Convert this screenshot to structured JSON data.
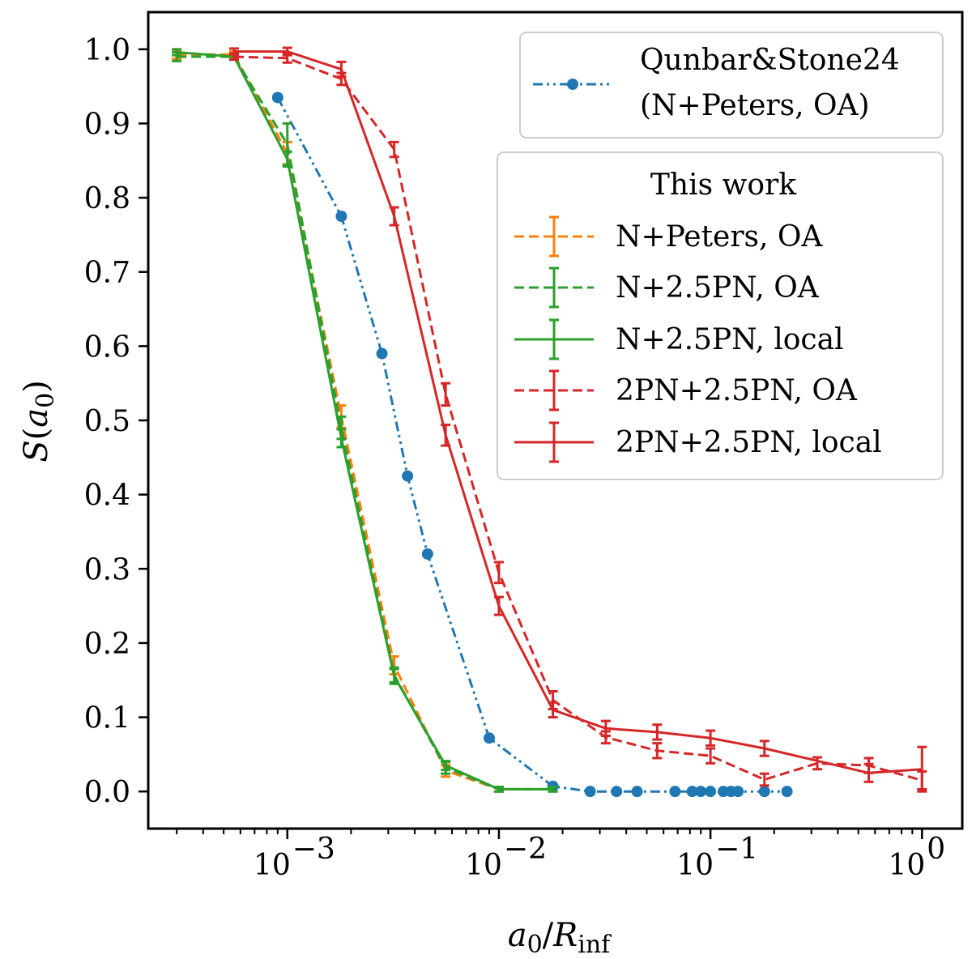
{
  "chart_data": {
    "type": "line",
    "title": "",
    "xlabel": "a0/Rinf",
    "ylabel": "S(a0)",
    "xscale": "log",
    "xlim": [
      0.00022,
      1.55
    ],
    "ylim": [
      -0.05,
      1.05
    ],
    "x_ticks": [
      {
        "value": 0.001,
        "base": "10",
        "exp": "−3"
      },
      {
        "value": 0.01,
        "base": "10",
        "exp": "−2"
      },
      {
        "value": 0.1,
        "base": "10",
        "exp": "−1"
      },
      {
        "value": 1,
        "base": "10",
        "exp": "0"
      }
    ],
    "y_ticks": [
      "0.0",
      "0.1",
      "0.2",
      "0.3",
      "0.4",
      "0.5",
      "0.6",
      "0.7",
      "0.8",
      "0.9",
      "1.0"
    ],
    "legend_placement": "top-right",
    "legend_groups": [
      {
        "title": "",
        "entries": [
          {
            "label_lines": [
              "Qunbar&Stone24",
              "(N+Peters, OA)"
            ],
            "series": 0
          }
        ]
      },
      {
        "title": "This work",
        "entries": [
          {
            "label_lines": [
              "N+Peters, OA"
            ],
            "series": 1
          },
          {
            "label_lines": [
              "N+2.5PN, OA"
            ],
            "series": 2
          },
          {
            "label_lines": [
              "N+2.5PN, local"
            ],
            "series": 3
          },
          {
            "label_lines": [
              "2PN+2.5PN, OA"
            ],
            "series": 4
          },
          {
            "label_lines": [
              "2PN+2.5PN, local"
            ],
            "series": 5
          }
        ]
      }
    ],
    "series": [
      {
        "name": "Qunbar&Stone24 (N+Peters, OA)",
        "color": "#1f77b4",
        "style": "dashdotdot",
        "marker": "circle",
        "errorbars": false,
        "x": [
          0.0009,
          0.0018,
          0.0028,
          0.0037,
          0.0046,
          0.009,
          0.018,
          0.027,
          0.036,
          0.045,
          0.068,
          0.082,
          0.09,
          0.1,
          0.115,
          0.125,
          0.135,
          0.18,
          0.23
        ],
        "y": [
          0.935,
          0.775,
          0.59,
          0.425,
          0.32,
          0.072,
          0.007,
          0.0,
          0.0,
          0.0,
          0.0,
          0.0,
          0.0,
          0.0,
          0.0,
          0.0,
          0.0,
          0.0,
          0.0
        ]
      },
      {
        "name": "N+Peters, OA",
        "color": "#ff7f0e",
        "style": "dashed",
        "marker": "none",
        "errorbars": true,
        "x": [
          0.0003,
          0.00056,
          0.001,
          0.0018,
          0.0032,
          0.0056,
          0.01
        ],
        "y": [
          0.993,
          0.993,
          0.86,
          0.505,
          0.17,
          0.028,
          0.003
        ],
        "err": [
          0.006,
          0.004,
          0.015,
          0.015,
          0.012,
          0.008,
          0.003
        ]
      },
      {
        "name": "N+2.5PN, OA",
        "color": "#2ca02c",
        "style": "dashed",
        "marker": "none",
        "errorbars": true,
        "x": [
          0.0003,
          0.00056,
          0.001,
          0.0018,
          0.0032,
          0.0056,
          0.01,
          0.018
        ],
        "y": [
          0.99,
          0.99,
          0.872,
          0.49,
          0.157,
          0.032,
          0.003,
          0.003
        ],
        "err": [
          0.006,
          0.004,
          0.028,
          0.015,
          0.01,
          0.008,
          0.003,
          0.003
        ]
      },
      {
        "name": "N+2.5PN, local",
        "color": "#2ca02c",
        "style": "solid",
        "marker": "none",
        "errorbars": true,
        "x": [
          0.0003,
          0.00056,
          0.001,
          0.0018,
          0.0032,
          0.0056,
          0.01,
          0.018
        ],
        "y": [
          0.996,
          0.99,
          0.852,
          0.476,
          0.155,
          0.035,
          0.003,
          0.003
        ],
        "err": [
          0.004,
          0.004,
          0.01,
          0.012,
          0.01,
          0.006,
          0.003,
          0.003
        ]
      },
      {
        "name": "2PN+2.5PN, OA",
        "color": "#d62728",
        "style": "dashed",
        "marker": "none",
        "errorbars": true,
        "x": [
          0.00056,
          0.001,
          0.0018,
          0.0032,
          0.0056,
          0.01,
          0.018,
          0.032,
          0.056,
          0.1,
          0.18,
          0.32,
          0.56,
          1.0
        ],
        "y": [
          0.99,
          0.988,
          0.96,
          0.865,
          0.535,
          0.295,
          0.123,
          0.073,
          0.055,
          0.048,
          0.016,
          0.038,
          0.035,
          0.015
        ],
        "err": [
          0.004,
          0.006,
          0.008,
          0.01,
          0.015,
          0.014,
          0.012,
          0.008,
          0.01,
          0.01,
          0.008,
          0.008,
          0.01,
          0.012
        ]
      },
      {
        "name": "2PN+2.5PN, local",
        "color": "#d62728",
        "style": "solid",
        "marker": "none",
        "errorbars": true,
        "x": [
          0.00056,
          0.001,
          0.0018,
          0.0032,
          0.0056,
          0.01,
          0.018,
          0.032,
          0.056,
          0.1,
          0.18,
          0.56,
          1.0
        ],
        "y": [
          0.997,
          0.997,
          0.973,
          0.775,
          0.48,
          0.25,
          0.11,
          0.085,
          0.08,
          0.072,
          0.058,
          0.025,
          0.03
        ],
        "err": [
          0.004,
          0.005,
          0.01,
          0.012,
          0.014,
          0.012,
          0.01,
          0.01,
          0.01,
          0.01,
          0.01,
          0.012,
          0.03
        ]
      }
    ]
  }
}
